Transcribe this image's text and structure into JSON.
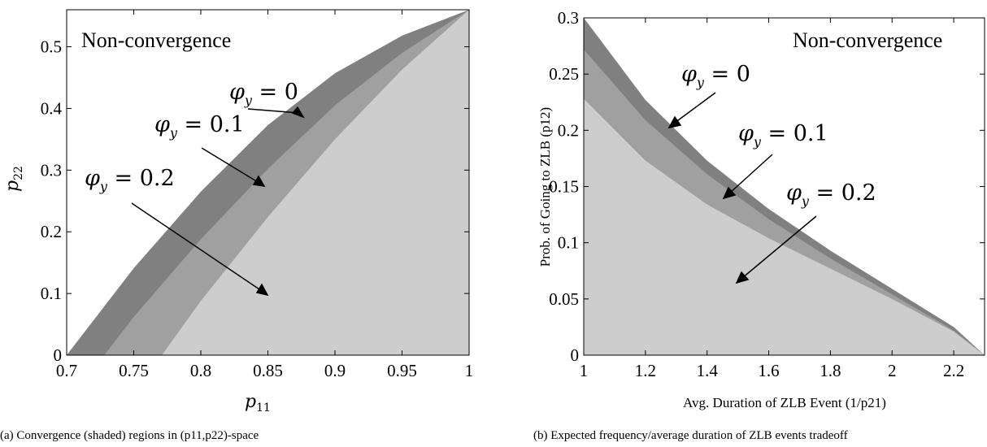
{
  "chart_data": [
    {
      "type": "area",
      "xlabel": "p",
      "xlabel_sub": "11",
      "ylabel": "p",
      "ylabel_sub": "22",
      "xlim": [
        0.7,
        1.0
      ],
      "ylim": [
        0,
        0.56
      ],
      "xticks": [
        "0.7",
        "0.75",
        "0.8",
        "0.85",
        "0.9",
        "0.95",
        "1"
      ],
      "yticks": [
        "0",
        "0.1",
        "0.2",
        "0.3",
        "0.4",
        "0.5"
      ],
      "grid": false,
      "series": [
        {
          "name": "φy = 0",
          "color": "#808080",
          "x": [
            0.7,
            0.75,
            0.8,
            0.85,
            0.9,
            0.95,
            1.0
          ],
          "values": [
            0.0,
            0.141,
            0.265,
            0.373,
            0.457,
            0.518,
            0.56
          ]
        },
        {
          "name": "φy = 0.1",
          "color": "#a0a0a0",
          "x": [
            0.728,
            0.75,
            0.8,
            0.85,
            0.9,
            0.95,
            1.0
          ],
          "values": [
            0.0,
            0.062,
            0.188,
            0.302,
            0.405,
            0.49,
            0.56
          ]
        },
        {
          "name": "φy = 0.2",
          "color": "#cdcdcd",
          "x": [
            0.771,
            0.8,
            0.85,
            0.9,
            0.95,
            1.0
          ],
          "values": [
            0.0,
            0.088,
            0.224,
            0.35,
            0.463,
            0.56
          ]
        }
      ],
      "annotations": [
        {
          "text": "Non-convergence"
        },
        {
          "text": "φ",
          "sub": "y",
          "eq": " = 0"
        },
        {
          "text": "φ",
          "sub": "y",
          "eq": " = 0.1"
        },
        {
          "text": "φ",
          "sub": "y",
          "eq": " = 0.2"
        }
      ],
      "caption": "(a) Convergence (shaded) regions in (p11,p22)-space"
    },
    {
      "type": "area",
      "xlabel": "Avg. Duration of ZLB Event (1/p21)",
      "ylabel": "Prob. of Going to ZLB (p12)",
      "xlim": [
        1,
        2.3
      ],
      "ylim": [
        0,
        0.3
      ],
      "xticks": [
        "1",
        "1.2",
        "1.4",
        "1.6",
        "1.8",
        "2",
        "2.2"
      ],
      "yticks": [
        "0",
        "0.05",
        "0.1",
        "0.15",
        "0.2",
        "0.25",
        "0.3"
      ],
      "grid": false,
      "series": [
        {
          "name": "φy = 0",
          "color": "#808080",
          "x": [
            1.0,
            1.2,
            1.4,
            1.6,
            1.8,
            2.0,
            2.2,
            2.3
          ],
          "values": [
            0.3,
            0.227,
            0.173,
            0.13,
            0.093,
            0.059,
            0.025,
            0.0
          ]
        },
        {
          "name": "φy = 0.1",
          "color": "#a0a0a0",
          "x": [
            1.0,
            1.2,
            1.4,
            1.6,
            1.8,
            2.0,
            2.2,
            2.3
          ],
          "values": [
            0.272,
            0.209,
            0.161,
            0.121,
            0.086,
            0.054,
            0.022,
            0.0
          ]
        },
        {
          "name": "φy = 0.2",
          "color": "#cdcdcd",
          "x": [
            1.0,
            1.2,
            1.4,
            1.6,
            1.8,
            2.0,
            2.2,
            2.3
          ],
          "values": [
            0.228,
            0.173,
            0.134,
            0.104,
            0.077,
            0.05,
            0.021,
            0.0
          ]
        }
      ],
      "annotations": [
        {
          "text": "Non-convergence"
        },
        {
          "text": "φ",
          "sub": "y",
          "eq": " = 0"
        },
        {
          "text": "φ",
          "sub": "y",
          "eq": " = 0.1"
        },
        {
          "text": "φ",
          "sub": "y",
          "eq": " = 0.2"
        }
      ],
      "caption": "(b) Expected frequency/average duration of ZLB events tradeoff"
    }
  ]
}
